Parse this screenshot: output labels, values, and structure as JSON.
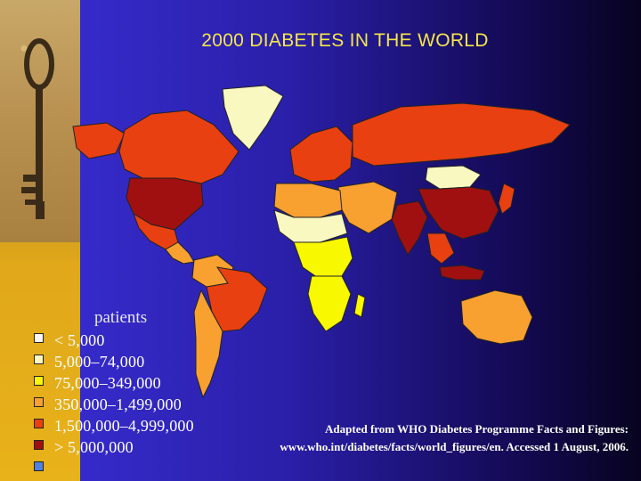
{
  "title": "2000 DIABETES IN THE WORLD",
  "legend": {
    "title": "patients",
    "items": [
      {
        "label": "< 5,000",
        "color": "#f8f8f8"
      },
      {
        "label": "5,000–74,000",
        "color": "#f8f8c0"
      },
      {
        "label": "75,000–349,000",
        "color": "#f8f800"
      },
      {
        "label": "350,000–1,499,000",
        "color": "#f8a030"
      },
      {
        "label": "1,500,000–4,999,000",
        "color": "#e84010"
      },
      {
        "label": "> 5,000,000",
        "color": "#a01010"
      },
      {
        "label": "",
        "color": "#5080e0"
      }
    ]
  },
  "source": {
    "line1": "Adapted from WHO Diabetes Programme Facts and Figures:",
    "line2": "www.who.int/diabetes/facts/world_figures/en. Accessed 1 August, 2006."
  },
  "map_regions": [
    {
      "region": "greenland",
      "class": "5,000–74,000"
    },
    {
      "region": "canada",
      "class": "1,500,000–4,999,000"
    },
    {
      "region": "alaska",
      "class": "1,500,000–4,999,000"
    },
    {
      "region": "usa",
      "class": "> 5,000,000"
    },
    {
      "region": "mexico",
      "class": "1,500,000–4,999,000"
    },
    {
      "region": "central-america",
      "class": "350,000–1,499,000"
    },
    {
      "region": "south-america-north",
      "class": "350,000–1,499,000"
    },
    {
      "region": "brazil",
      "class": "1,500,000–4,999,000"
    },
    {
      "region": "argentina-chile",
      "class": "350,000–1,499,000"
    },
    {
      "region": "europe",
      "class": "1,500,000–4,999,000"
    },
    {
      "region": "russia",
      "class": "1,500,000–4,999,000"
    },
    {
      "region": "middle-east",
      "class": "350,000–1,499,000"
    },
    {
      "region": "india",
      "class": "> 5,000,000"
    },
    {
      "region": "china",
      "class": "> 5,000,000"
    },
    {
      "region": "mongolia",
      "class": "5,000–74,000"
    },
    {
      "region": "southeast-asia",
      "class": "1,500,000–4,999,000"
    },
    {
      "region": "japan",
      "class": "1,500,000–4,999,000"
    },
    {
      "region": "indonesia",
      "class": "> 5,000,000"
    },
    {
      "region": "australia",
      "class": "350,000–1,499,000"
    },
    {
      "region": "north-africa",
      "class": "350,000–1,499,000"
    },
    {
      "region": "sahel",
      "class": "5,000–74,000"
    },
    {
      "region": "central-africa",
      "class": "75,000–349,000"
    },
    {
      "region": "southern-africa",
      "class": "75,000–349,000"
    },
    {
      "region": "madagascar",
      "class": "75,000–349,000"
    }
  ]
}
